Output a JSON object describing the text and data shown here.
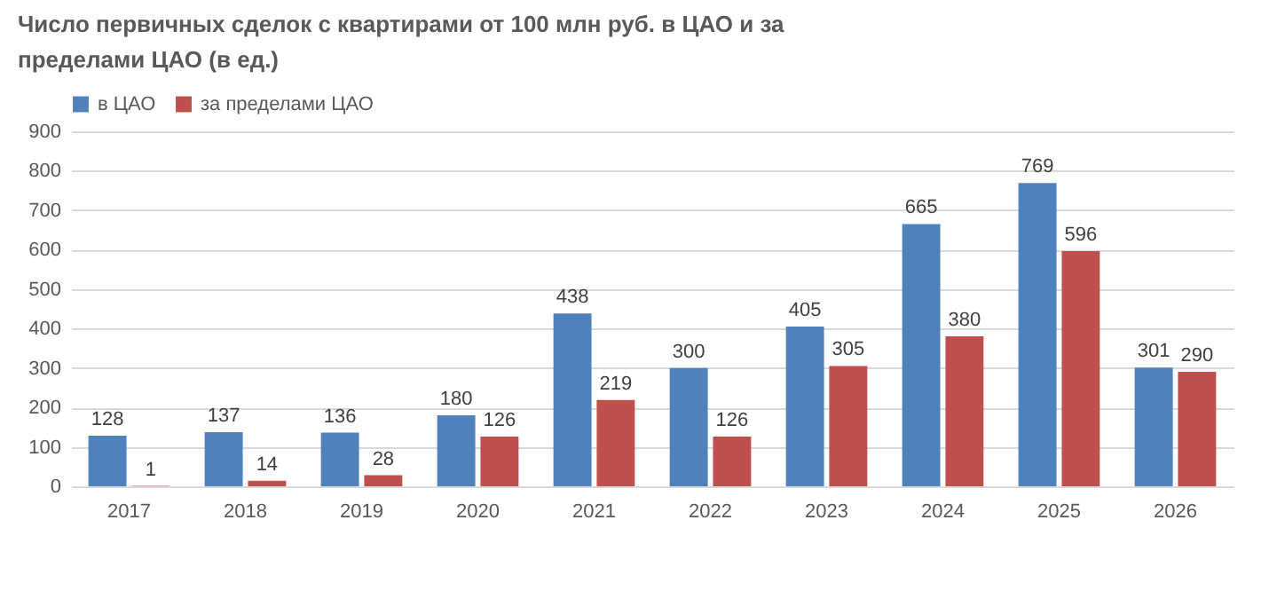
{
  "chart_data": {
    "type": "bar",
    "title": "Число первичных сделок с квартирами от 100 млн руб. в ЦАО и за пределами ЦАО (в ед.)",
    "categories": [
      "2017",
      "2018",
      "2019",
      "2020",
      "2021",
      "2022",
      "2023",
      "2024",
      "2025",
      "2026"
    ],
    "series": [
      {
        "name": "в ЦАО",
        "color": "#4f81bd",
        "values": [
          128,
          137,
          136,
          180,
          438,
          300,
          405,
          665,
          769,
          301
        ]
      },
      {
        "name": "за пределами ЦАО",
        "color": "#c0504d",
        "values": [
          1,
          14,
          28,
          126,
          219,
          126,
          305,
          380,
          596,
          290
        ]
      }
    ],
    "ylim": [
      0,
      900
    ],
    "yticks": [
      0,
      100,
      200,
      300,
      400,
      500,
      600,
      700,
      800,
      900
    ],
    "grid": "y",
    "legend": "top",
    "data_labels": true
  }
}
